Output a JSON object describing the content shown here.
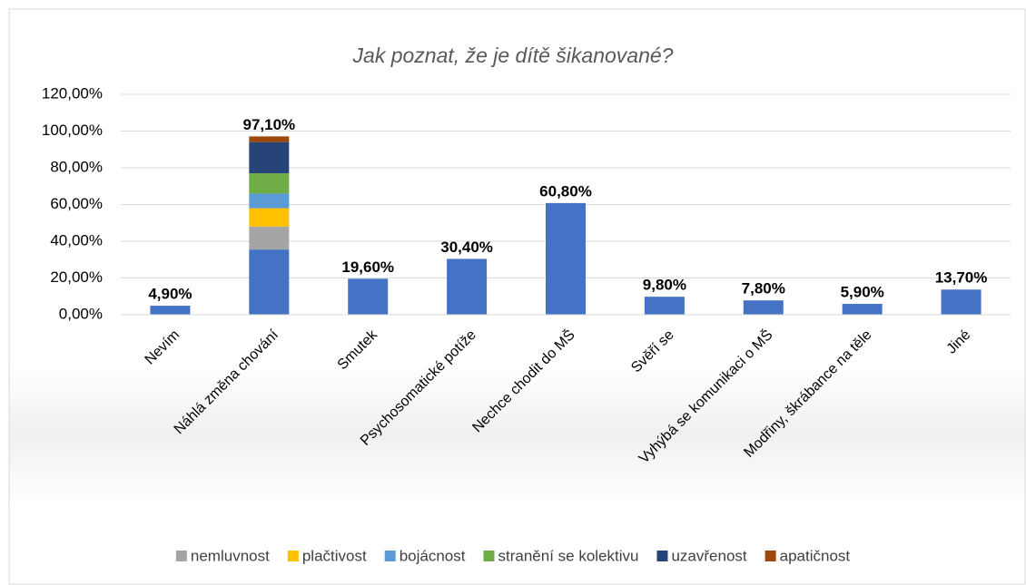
{
  "chart_data": {
    "type": "stacked_bar",
    "title": "Jak poznat, že je dítě šikanované?",
    "categories": [
      "Nevím",
      "Náhlá změna chování",
      "Smutek",
      "Psychosomatické potíže",
      "Nechce chodit do MŠ",
      "Svěří se",
      "Vyhýbá se komunikaci o MŠ",
      "Modřiny, škrábance na těle",
      "Jiné"
    ],
    "series": [
      {
        "color": "#4472c4",
        "values": [
          4.9,
          35.5,
          19.6,
          30.4,
          60.8,
          9.8,
          7.8,
          5.9,
          13.7
        ]
      },
      {
        "name": "nemluvnost",
        "color": "#a5a5a5",
        "values": [
          null,
          12.5,
          null,
          null,
          null,
          null,
          null,
          null,
          null
        ]
      },
      {
        "name": "plačtivost",
        "color": "#ffc000",
        "values": [
          null,
          10,
          null,
          null,
          null,
          null,
          null,
          null,
          null
        ]
      },
      {
        "name": "bojácnost",
        "color": "#5b9bd5",
        "values": [
          null,
          8,
          null,
          null,
          null,
          null,
          null,
          null,
          null
        ]
      },
      {
        "name": "stranění se kolektivu",
        "color": "#70ad47",
        "values": [
          null,
          11,
          null,
          null,
          null,
          null,
          null,
          null,
          null
        ]
      },
      {
        "name": "uzavřenost",
        "color": "#264478",
        "values": [
          null,
          17,
          null,
          null,
          null,
          null,
          null,
          null,
          null
        ]
      },
      {
        "name": "apatičnost",
        "color": "#9e480e",
        "values": [
          null,
          3.1,
          null,
          null,
          null,
          null,
          null,
          null,
          null
        ]
      }
    ],
    "totals": [
      4.9,
      97.1,
      19.6,
      30.4,
      60.8,
      9.8,
      7.8,
      5.9,
      13.7
    ],
    "total_labels": [
      "4,90%",
      "97,10%",
      "19,60%",
      "30,40%",
      "60,80%",
      "9,80%",
      "7,80%",
      "5,90%",
      "13,70%"
    ],
    "ylim": [
      0,
      120
    ],
    "yticks": [
      {
        "value": 0,
        "label": "0,00%"
      },
      {
        "value": 20,
        "label": "20,00%"
      },
      {
        "value": 40,
        "label": "40,00%"
      },
      {
        "value": 60,
        "label": "60,00%"
      },
      {
        "value": 80,
        "label": "80,00%"
      },
      {
        "value": 100,
        "label": "100,00%"
      },
      {
        "value": 120,
        "label": "120,00%"
      }
    ],
    "grid": true,
    "legend": "bottom"
  }
}
